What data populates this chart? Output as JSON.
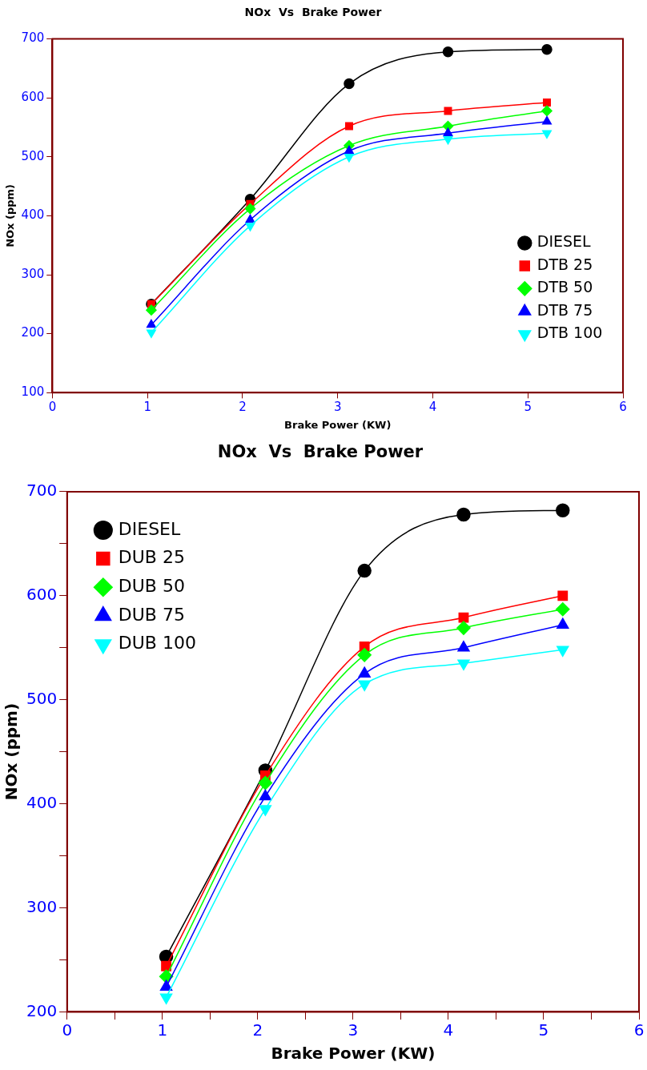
{
  "chart_data": [
    {
      "type": "line",
      "title": "NOx  Vs  Brake Power",
      "xlabel": "Brake Power (KW)",
      "ylabel": "NOx (ppm)",
      "x": [
        1.04,
        2.08,
        3.12,
        4.16,
        5.2
      ],
      "xlim": [
        0,
        6
      ],
      "xticks": [
        0,
        1,
        2,
        3,
        4,
        5,
        6
      ],
      "ylim": [
        100,
        700
      ],
      "yticks": [
        100,
        200,
        300,
        400,
        500,
        600,
        700
      ],
      "grid": false,
      "legend": "bottom right",
      "series": [
        {
          "name": "DIESEL",
          "color": "#000000",
          "marker": "circle",
          "values": [
            250,
            428,
            624,
            678,
            682
          ]
        },
        {
          "name": "DTB 25",
          "color": "#ff0000",
          "marker": "square",
          "values": [
            250,
            420,
            552,
            578,
            592
          ]
        },
        {
          "name": "DTB 50",
          "color": "#00ff00",
          "marker": "diamond",
          "values": [
            240,
            412,
            519,
            552,
            578
          ]
        },
        {
          "name": "DTB 75",
          "color": "#0000ff",
          "marker": "triangle",
          "values": [
            215,
            393,
            510,
            540,
            560
          ]
        },
        {
          "name": "DTB 100",
          "color": "#00ffff",
          "marker": "triangle-down",
          "values": [
            202,
            383,
            500,
            530,
            540
          ]
        }
      ]
    },
    {
      "type": "line",
      "title": "NOx  Vs  Brake Power",
      "xlabel": "Brake Power (KW)",
      "ylabel": "NOx (ppm)",
      "x": [
        1.04,
        2.08,
        3.12,
        4.16,
        5.2
      ],
      "xlim": [
        0,
        6
      ],
      "xticks": [
        0,
        {
          "value": 0.5,
          "label": null
        },
        1,
        {
          "value": 1.5,
          "label": null
        },
        2,
        {
          "value": 2.5,
          "label": null
        },
        3,
        {
          "value": 3.5,
          "label": null
        },
        4,
        {
          "value": 4.5,
          "label": null
        },
        5,
        {
          "value": 5.5,
          "label": null
        },
        6
      ],
      "ylim": [
        200,
        700
      ],
      "yticks": [
        200,
        {
          "value": 250,
          "label": null
        },
        300,
        {
          "value": 350,
          "label": null
        },
        400,
        {
          "value": 450,
          "label": null
        },
        500,
        {
          "value": 550,
          "label": null
        },
        600,
        {
          "value": 650,
          "label": null
        },
        700
      ],
      "grid": false,
      "legend": "top left",
      "series": [
        {
          "name": "DIESEL",
          "color": "#000000",
          "marker": "circle",
          "values": [
            253,
            432,
            624,
            678,
            682
          ]
        },
        {
          "name": "DUB 25",
          "color": "#ff0000",
          "marker": "square",
          "values": [
            244,
            427,
            551,
            579,
            600
          ]
        },
        {
          "name": "DUB 50",
          "color": "#00ff00",
          "marker": "diamond",
          "values": [
            234,
            420,
            543,
            569,
            587
          ]
        },
        {
          "name": "DUB 75",
          "color": "#0000ff",
          "marker": "triangle",
          "values": [
            224,
            407,
            525,
            550,
            572
          ]
        },
        {
          "name": "DUB 100",
          "color": "#00ffff",
          "marker": "triangle-down",
          "values": [
            214,
            395,
            515,
            535,
            548
          ]
        }
      ]
    }
  ]
}
